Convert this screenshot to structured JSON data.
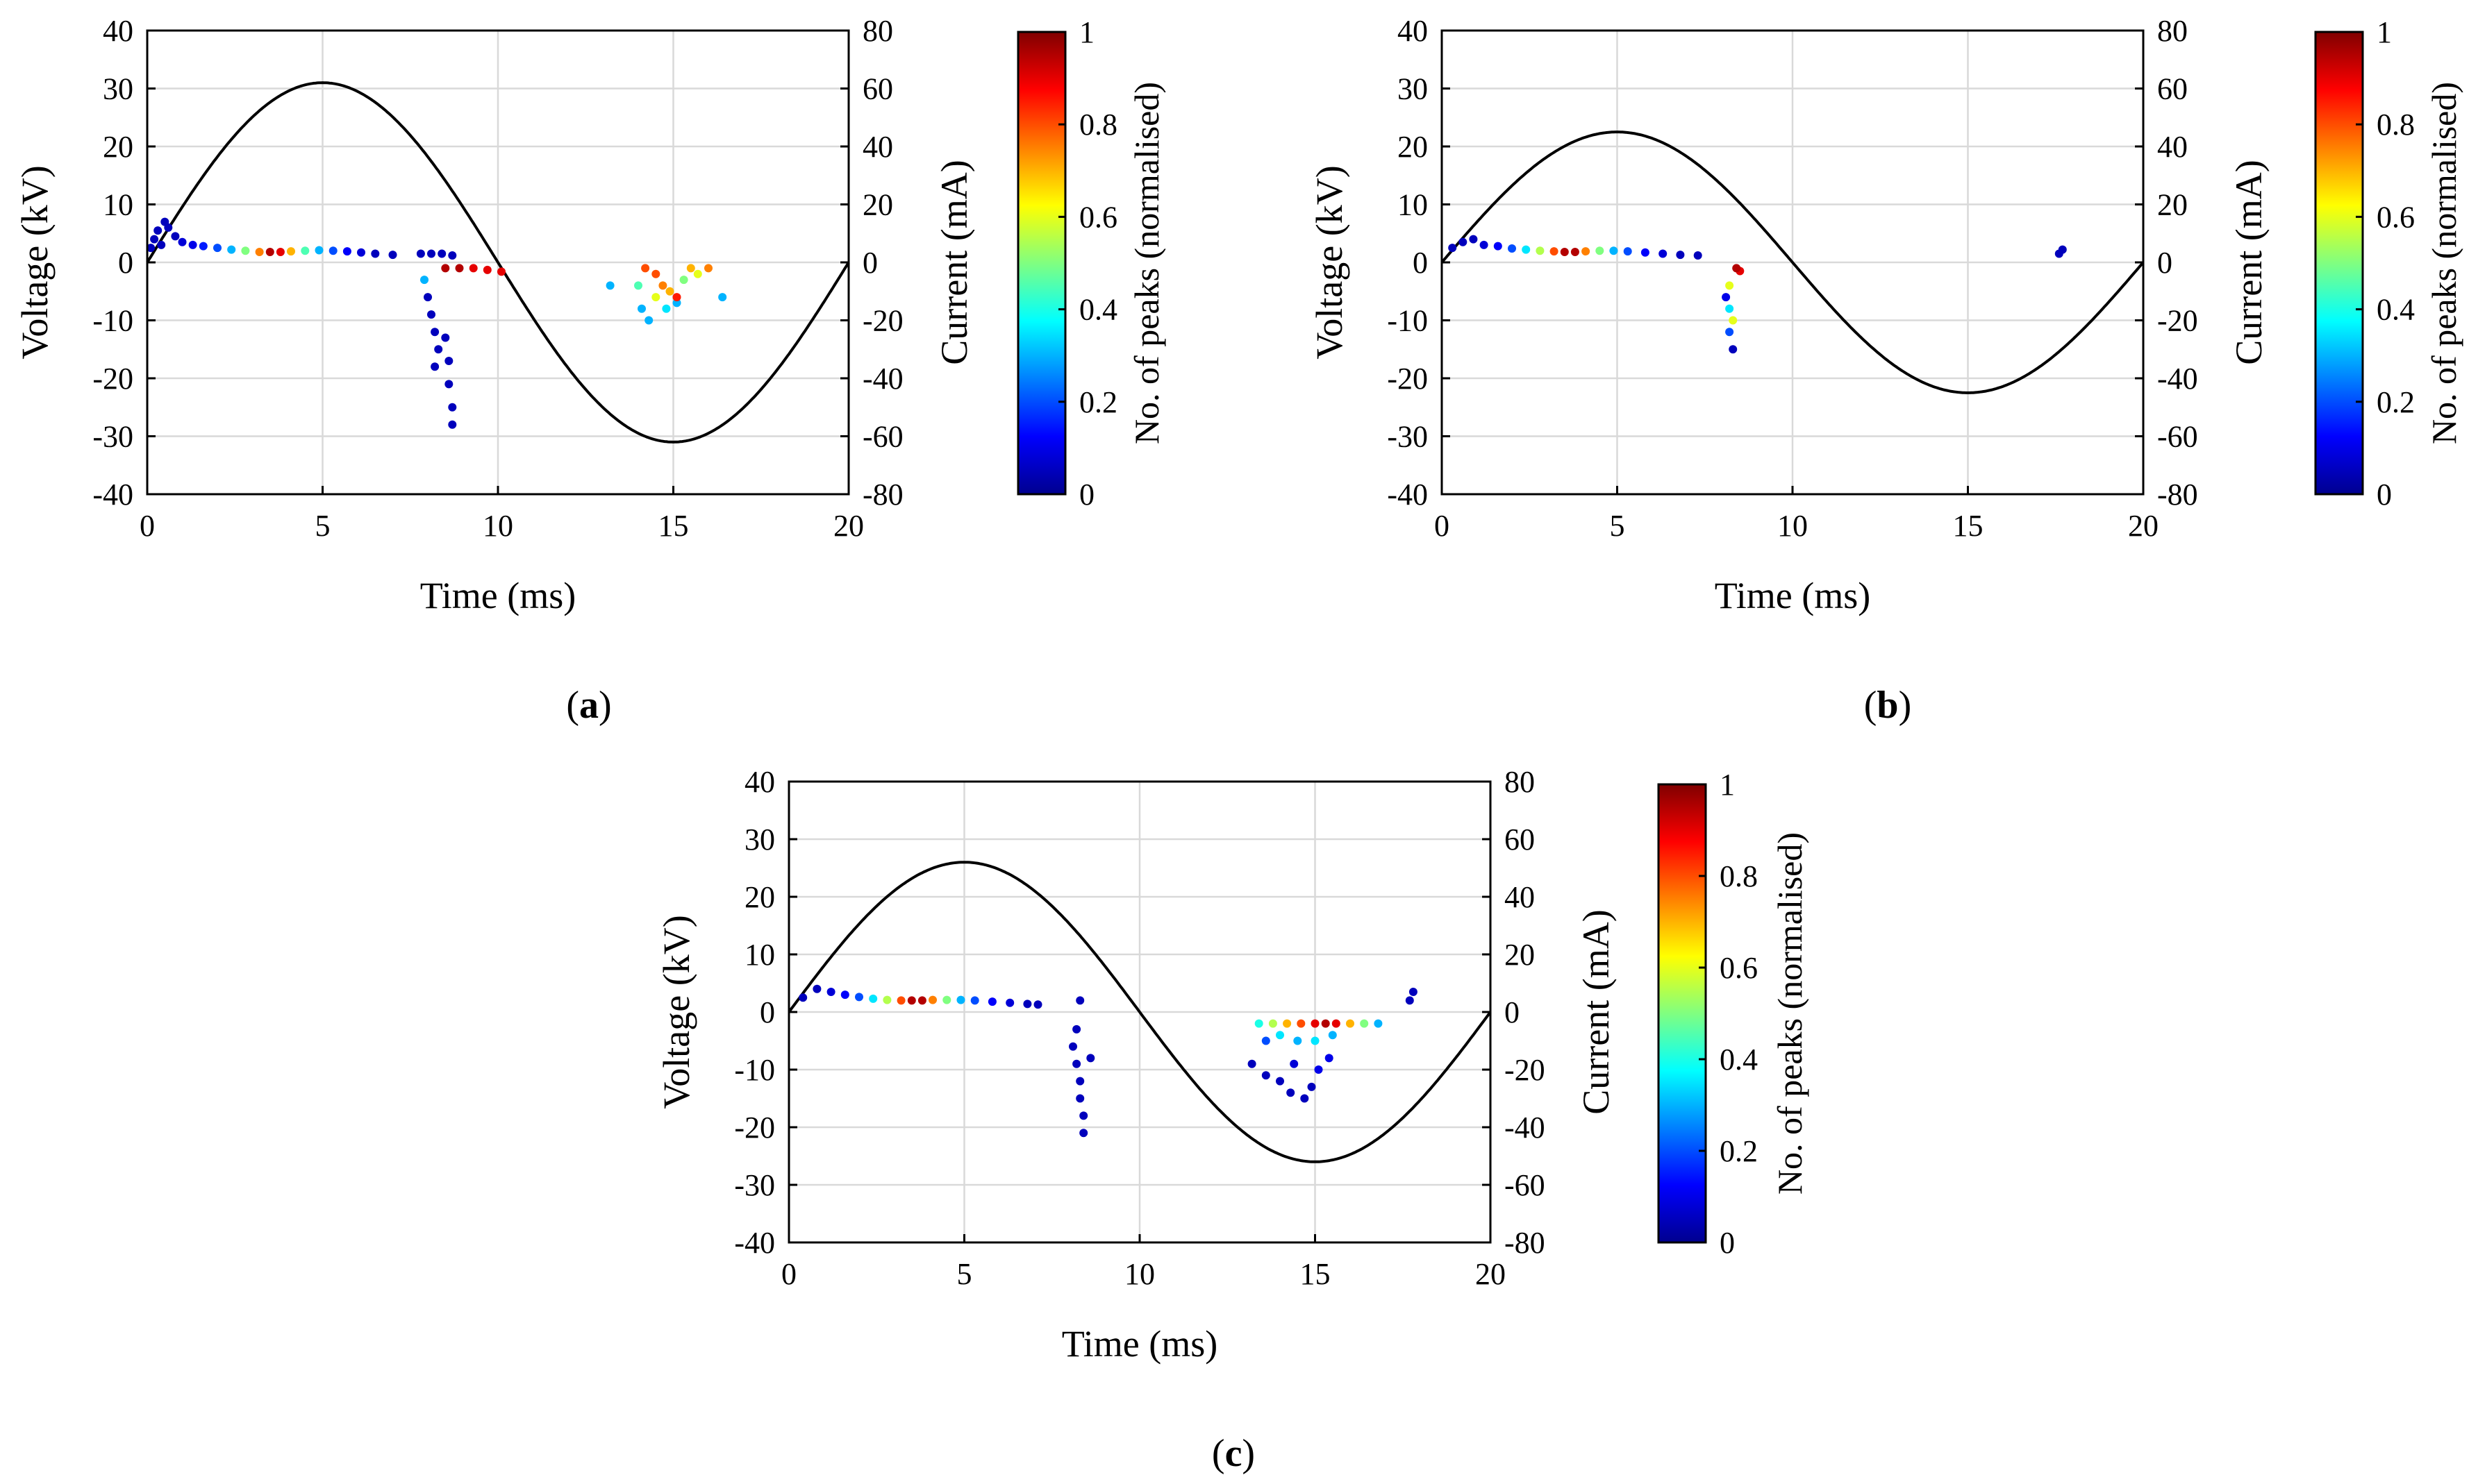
{
  "colors": {
    "jet": [
      "#00008f",
      "#0000ff",
      "#0080ff",
      "#00ffff",
      "#80ff80",
      "#ffff00",
      "#ff8000",
      "#ff0000",
      "#800000"
    ],
    "axis": "#000000",
    "grid": "#d9d9d9"
  },
  "chart_data": [
    {
      "type": "scatter",
      "panel": "a",
      "panel_prefix": "(",
      "panel_suffix": ")",
      "title": "",
      "xlabel": "Time (ms)",
      "ylabel": "Voltage (kV)",
      "y2label": "Current (mA)",
      "colorbar_label": "No. of peaks (normalised)",
      "xlim": [
        0,
        20
      ],
      "ylim": [
        -40,
        40
      ],
      "y2lim": [
        -80,
        80
      ],
      "colorbar_lim": [
        0,
        1
      ],
      "xticks": [
        "0",
        "5",
        "10",
        "15",
        "20"
      ],
      "yticks": [
        "-40",
        "-30",
        "-20",
        "-10",
        "0",
        "10",
        "20",
        "30",
        "40"
      ],
      "y2ticks": [
        "-80",
        "-60",
        "-40",
        "-20",
        "0",
        "20",
        "40",
        "60",
        "80"
      ],
      "cbticks": [
        "0",
        "0.2",
        "0.4",
        "0.6",
        "0.8",
        "1"
      ],
      "grid": true,
      "sine_amplitude_kv": 31,
      "sine_period_ms": 20,
      "points": [
        [
          0.1,
          2.5,
          0.05
        ],
        [
          0.2,
          4,
          0.05
        ],
        [
          0.3,
          5.5,
          0.05
        ],
        [
          0.5,
          7,
          0.05
        ],
        [
          0.6,
          6,
          0.05
        ],
        [
          0.4,
          3,
          0.05
        ],
        [
          0.8,
          4.5,
          0.05
        ],
        [
          1.0,
          3.5,
          0.08
        ],
        [
          1.3,
          3,
          0.1
        ],
        [
          1.6,
          2.8,
          0.15
        ],
        [
          2.0,
          2.5,
          0.2
        ],
        [
          2.4,
          2.2,
          0.3
        ],
        [
          2.8,
          2.0,
          0.5
        ],
        [
          3.2,
          1.8,
          0.75
        ],
        [
          3.5,
          1.8,
          0.95
        ],
        [
          3.8,
          1.8,
          0.9
        ],
        [
          4.1,
          1.9,
          0.7
        ],
        [
          4.5,
          2.0,
          0.45
        ],
        [
          4.9,
          2.1,
          0.3
        ],
        [
          5.3,
          2.0,
          0.2
        ],
        [
          5.7,
          1.9,
          0.12
        ],
        [
          6.1,
          1.7,
          0.08
        ],
        [
          6.5,
          1.5,
          0.05
        ],
        [
          7.0,
          1.3,
          0.05
        ],
        [
          7.8,
          1.5,
          0.05
        ],
        [
          8.1,
          1.5,
          0.05
        ],
        [
          8.4,
          1.5,
          0.05
        ],
        [
          8.7,
          1.2,
          0.05
        ],
        [
          8.5,
          -1,
          0.95
        ],
        [
          8.9,
          -1,
          0.95
        ],
        [
          9.3,
          -1,
          0.9
        ],
        [
          9.7,
          -1.3,
          0.9
        ],
        [
          10.1,
          -1.6,
          0.9
        ],
        [
          7.9,
          -3,
          0.3
        ],
        [
          8.0,
          -6,
          0.05
        ],
        [
          8.1,
          -9,
          0.05
        ],
        [
          8.2,
          -12,
          0.05
        ],
        [
          8.3,
          -15,
          0.05
        ],
        [
          8.2,
          -18,
          0.05
        ],
        [
          8.5,
          -13,
          0.05
        ],
        [
          8.6,
          -17,
          0.05
        ],
        [
          8.6,
          -21,
          0.05
        ],
        [
          8.7,
          -25,
          0.05
        ],
        [
          8.7,
          -28,
          0.05
        ],
        [
          14.0,
          -4,
          0.45
        ],
        [
          14.1,
          -8,
          0.3
        ],
        [
          14.3,
          -10,
          0.3
        ],
        [
          14.5,
          -6,
          0.6
        ],
        [
          14.5,
          -2,
          0.8
        ],
        [
          14.7,
          -4,
          0.75
        ],
        [
          14.9,
          -5,
          0.7
        ],
        [
          15.1,
          -6,
          0.85
        ],
        [
          15.3,
          -3,
          0.5
        ],
        [
          15.5,
          -1,
          0.7
        ],
        [
          15.7,
          -2,
          0.6
        ],
        [
          16.0,
          -1,
          0.75
        ],
        [
          16.4,
          -6,
          0.3
        ],
        [
          13.2,
          -4,
          0.3
        ],
        [
          14.2,
          -1,
          0.8
        ],
        [
          14.8,
          -8,
          0.35
        ],
        [
          15.1,
          -7,
          0.3
        ]
      ]
    },
    {
      "type": "scatter",
      "panel": "b",
      "panel_prefix": "(",
      "panel_suffix": ")",
      "title": "",
      "xlabel": "Time (ms)",
      "ylabel": "Voltage (kV)",
      "y2label": "Current (mA)",
      "colorbar_label": "No. of peaks (normalised)",
      "xlim": [
        0,
        20
      ],
      "ylim": [
        -40,
        40
      ],
      "y2lim": [
        -80,
        80
      ],
      "colorbar_lim": [
        0,
        1
      ],
      "xticks": [
        "0",
        "5",
        "10",
        "15",
        "20"
      ],
      "yticks": [
        "-40",
        "-30",
        "-20",
        "-10",
        "0",
        "10",
        "20",
        "30",
        "40"
      ],
      "y2ticks": [
        "-80",
        "-60",
        "-40",
        "-20",
        "0",
        "20",
        "40",
        "60",
        "80"
      ],
      "cbticks": [
        "0",
        "0.2",
        "0.4",
        "0.6",
        "0.8",
        "1"
      ],
      "grid": true,
      "sine_amplitude_kv": 22.5,
      "sine_period_ms": 20,
      "points": [
        [
          0.3,
          2.5,
          0.05
        ],
        [
          0.6,
          3.5,
          0.05
        ],
        [
          0.9,
          4,
          0.05
        ],
        [
          1.2,
          3,
          0.08
        ],
        [
          1.6,
          2.8,
          0.12
        ],
        [
          2.0,
          2.4,
          0.2
        ],
        [
          2.4,
          2.2,
          0.35
        ],
        [
          2.8,
          2.0,
          0.55
        ],
        [
          3.2,
          1.9,
          0.8
        ],
        [
          3.5,
          1.8,
          0.95
        ],
        [
          3.8,
          1.8,
          0.95
        ],
        [
          4.1,
          1.9,
          0.75
        ],
        [
          4.5,
          2.0,
          0.5
        ],
        [
          4.9,
          2.0,
          0.3
        ],
        [
          5.3,
          1.9,
          0.2
        ],
        [
          5.8,
          1.7,
          0.12
        ],
        [
          6.3,
          1.5,
          0.08
        ],
        [
          6.8,
          1.3,
          0.05
        ],
        [
          7.3,
          1.2,
          0.05
        ],
        [
          8.4,
          -1,
          0.95
        ],
        [
          8.5,
          -1.5,
          0.9
        ],
        [
          8.2,
          -4,
          0.6
        ],
        [
          8.1,
          -6,
          0.1
        ],
        [
          8.2,
          -8,
          0.35
        ],
        [
          8.3,
          -10,
          0.6
        ],
        [
          8.2,
          -12,
          0.2
        ],
        [
          8.3,
          -15,
          0.05
        ],
        [
          17.6,
          1.5,
          0.05
        ],
        [
          17.7,
          2.2,
          0.05
        ]
      ]
    },
    {
      "type": "scatter",
      "panel": "c",
      "panel_prefix": "(",
      "panel_suffix": ")",
      "title": "",
      "xlabel": "Time (ms)",
      "ylabel": "Voltage (kV)",
      "y2label": "Current (mA)",
      "colorbar_label": "No. of peaks (normalised)",
      "xlim": [
        0,
        20
      ],
      "ylim": [
        -40,
        40
      ],
      "y2lim": [
        -80,
        80
      ],
      "colorbar_lim": [
        0,
        1
      ],
      "xticks": [
        "0",
        "5",
        "10",
        "15",
        "20"
      ],
      "yticks": [
        "-40",
        "-30",
        "-20",
        "-10",
        "0",
        "10",
        "20",
        "30",
        "40"
      ],
      "y2ticks": [
        "-80",
        "-60",
        "-40",
        "-20",
        "0",
        "20",
        "40",
        "60",
        "80"
      ],
      "cbticks": [
        "0",
        "0.2",
        "0.4",
        "0.6",
        "0.8",
        "1"
      ],
      "grid": true,
      "sine_amplitude_kv": 26,
      "sine_period_ms": 20,
      "points": [
        [
          0.4,
          2.5,
          0.05
        ],
        [
          0.8,
          4,
          0.05
        ],
        [
          1.2,
          3.5,
          0.08
        ],
        [
          1.6,
          3,
          0.12
        ],
        [
          2.0,
          2.6,
          0.2
        ],
        [
          2.4,
          2.3,
          0.35
        ],
        [
          2.8,
          2.1,
          0.55
        ],
        [
          3.2,
          2.0,
          0.8
        ],
        [
          3.5,
          2.0,
          0.95
        ],
        [
          3.8,
          2.0,
          0.95
        ],
        [
          4.1,
          2.1,
          0.75
        ],
        [
          4.5,
          2.1,
          0.5
        ],
        [
          4.9,
          2.1,
          0.3
        ],
        [
          5.3,
          2.0,
          0.2
        ],
        [
          5.8,
          1.8,
          0.12
        ],
        [
          6.3,
          1.6,
          0.08
        ],
        [
          6.8,
          1.4,
          0.05
        ],
        [
          7.1,
          1.3,
          0.05
        ],
        [
          8.3,
          2,
          0.05
        ],
        [
          8.2,
          -3,
          0.05
        ],
        [
          8.1,
          -6,
          0.05
        ],
        [
          8.2,
          -9,
          0.05
        ],
        [
          8.3,
          -12,
          0.05
        ],
        [
          8.3,
          -15,
          0.05
        ],
        [
          8.4,
          -18,
          0.05
        ],
        [
          8.4,
          -21,
          0.05
        ],
        [
          8.6,
          -8,
          0.05
        ],
        [
          13.4,
          -2,
          0.4
        ],
        [
          13.8,
          -2,
          0.55
        ],
        [
          14.2,
          -2,
          0.7
        ],
        [
          14.6,
          -2,
          0.8
        ],
        [
          15.0,
          -2,
          0.9
        ],
        [
          15.3,
          -2,
          0.95
        ],
        [
          15.6,
          -2,
          0.9
        ],
        [
          16.0,
          -2,
          0.7
        ],
        [
          16.4,
          -2,
          0.5
        ],
        [
          16.8,
          -2,
          0.3
        ],
        [
          14.0,
          -4,
          0.35
        ],
        [
          14.5,
          -5,
          0.3
        ],
        [
          15.0,
          -5,
          0.35
        ],
        [
          15.5,
          -4,
          0.3
        ],
        [
          13.6,
          -5,
          0.2
        ],
        [
          13.2,
          -9,
          0.05
        ],
        [
          13.6,
          -11,
          0.05
        ],
        [
          14.0,
          -12,
          0.05
        ],
        [
          14.3,
          -14,
          0.05
        ],
        [
          14.7,
          -15,
          0.05
        ],
        [
          14.4,
          -9,
          0.08
        ],
        [
          15.1,
          -10,
          0.1
        ],
        [
          15.4,
          -8,
          0.1
        ],
        [
          14.9,
          -13,
          0.05
        ],
        [
          17.7,
          2,
          0.05
        ],
        [
          17.8,
          3.5,
          0.05
        ]
      ]
    }
  ]
}
